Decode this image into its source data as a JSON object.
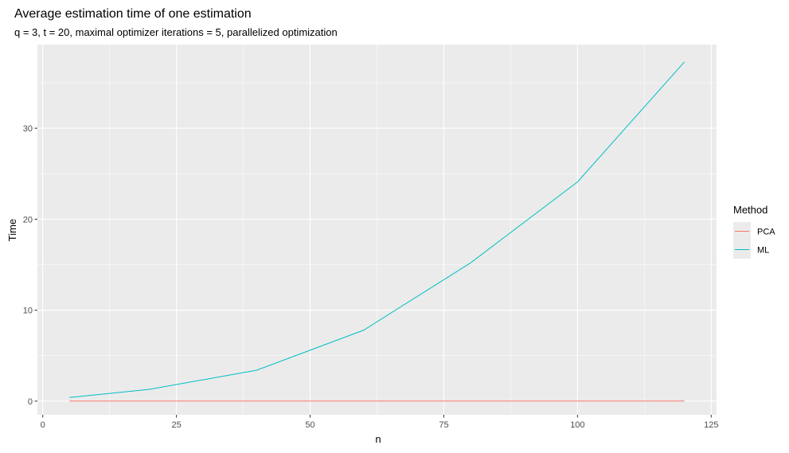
{
  "chart_data": {
    "type": "line",
    "title": "Average estimation time of one estimation",
    "subtitle": "q = 3, t = 20, maximal optimizer iterations = 5, parallelized optimization",
    "xlabel": "n",
    "ylabel": "Time",
    "xlim": [
      -1,
      126
    ],
    "ylim": [
      -1.5,
      39.2
    ],
    "xticks": [
      0,
      25,
      50,
      75,
      100,
      125
    ],
    "yticks": [
      0,
      10,
      20,
      30
    ],
    "grid": true,
    "legend": {
      "title": "Method",
      "position": "right"
    },
    "series": [
      {
        "name": "PCA",
        "color": "#F8766D",
        "x": [
          5,
          20,
          40,
          60,
          80,
          100,
          120
        ],
        "y": [
          0.01,
          0.01,
          0.01,
          0.01,
          0.01,
          0.01,
          0.01
        ]
      },
      {
        "name": "ML",
        "color": "#00BFC4",
        "x": [
          5,
          20,
          40,
          60,
          80,
          100,
          120
        ],
        "y": [
          0.4,
          1.3,
          3.4,
          7.8,
          15.2,
          24.1,
          37.3
        ]
      }
    ]
  }
}
